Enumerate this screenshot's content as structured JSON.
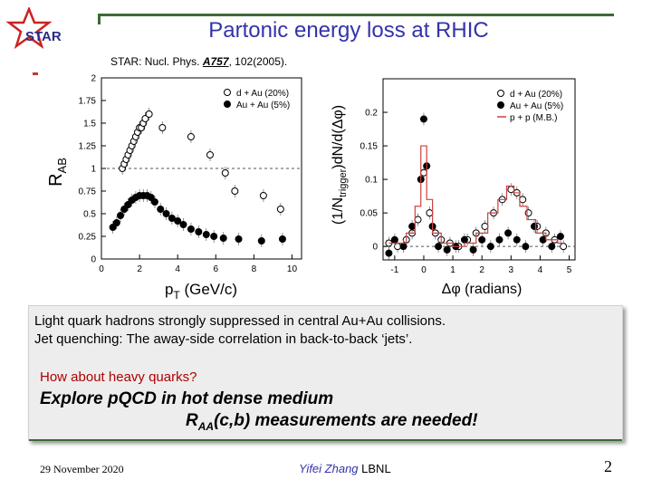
{
  "slide": {
    "title": "Partonic energy loss at RHIC",
    "citation_prefix": "STAR: Nucl. Phys. ",
    "citation_volume": "A757",
    "citation_suffix": ", 102(2005).",
    "logo_text": "STAR",
    "colors": {
      "title": "#3333aa",
      "rule": "#3a6b35",
      "logo": "#cc2222",
      "highlight": "#b00000"
    }
  },
  "body": {
    "line1": "Light quark hadrons strongly suppressed in central Au+Au collisions.",
    "line2": "Jet quenching: The away-side correlation in back-to-back ‘jets’.",
    "line3": "How about heavy quarks?",
    "line4": "Explore pQCD in hot dense medium",
    "line5_prefix": "R",
    "line5_sub": "AA",
    "line5_suffix": "(c,b) measurements are needed!"
  },
  "footer": {
    "date": "29 November 2020",
    "author": "Yifei Zhang",
    "affiliation": "LBNL",
    "page": "2"
  },
  "chart_data": [
    {
      "type": "scatter",
      "title": "",
      "xlabel": "pT (GeV/c)",
      "ylabel": "RAB",
      "xlim": [
        0,
        10.5
      ],
      "ylim": [
        0,
        2
      ],
      "x_ticks": [
        "0",
        "2",
        "4",
        "6",
        "8",
        "10"
      ],
      "y_ticks": [
        "0",
        "0.25",
        "0.5",
        "0.75",
        "1",
        "1.25",
        "1.5",
        "1.75",
        "2"
      ],
      "reference_line": 1,
      "legend": {
        "position": "top-right"
      },
      "series": [
        {
          "name": "d + Au (20%)",
          "marker": "open-circle",
          "x": [
            1.1,
            1.2,
            1.3,
            1.4,
            1.5,
            1.6,
            1.7,
            1.8,
            1.9,
            2.0,
            2.1,
            2.2,
            2.3,
            2.5,
            3.2,
            4.7,
            5.7,
            6.5,
            7.0,
            8.5,
            9.4
          ],
          "y": [
            1.0,
            1.05,
            1.1,
            1.15,
            1.2,
            1.25,
            1.3,
            1.35,
            1.4,
            1.45,
            1.45,
            1.5,
            1.55,
            1.6,
            1.45,
            1.35,
            1.15,
            0.95,
            0.75,
            0.7,
            0.55
          ]
        },
        {
          "name": "Au + Au (5%)",
          "marker": "filled-circle",
          "x": [
            0.6,
            0.8,
            1.0,
            1.2,
            1.4,
            1.6,
            1.8,
            2.0,
            2.2,
            2.4,
            2.6,
            2.8,
            3.1,
            3.4,
            3.7,
            4.0,
            4.3,
            4.7,
            5.1,
            5.5,
            5.9,
            6.4,
            7.2,
            8.4,
            9.5
          ],
          "y": [
            0.35,
            0.4,
            0.48,
            0.55,
            0.6,
            0.65,
            0.68,
            0.7,
            0.7,
            0.7,
            0.68,
            0.63,
            0.55,
            0.5,
            0.45,
            0.42,
            0.38,
            0.33,
            0.3,
            0.27,
            0.25,
            0.23,
            0.22,
            0.2,
            0.22
          ]
        }
      ]
    },
    {
      "type": "scatter",
      "title": "",
      "xlabel": "Δφ (radians)",
      "ylabel": "(1/Ntrigger)dN/d(Δφ)",
      "xlim": [
        -1.4,
        5.2
      ],
      "ylim": [
        -0.02,
        0.25
      ],
      "x_ticks": [
        "-1",
        "0",
        "1",
        "2",
        "3",
        "4",
        "5"
      ],
      "y_ticks": [
        "0",
        "0.05",
        "0.1",
        "0.15",
        "0.2"
      ],
      "reference_line": 0,
      "legend": {
        "position": "top-right"
      },
      "series": [
        {
          "name": "d + Au (20%)",
          "marker": "open-circle",
          "x": [
            -1.2,
            -0.9,
            -0.6,
            -0.4,
            -0.2,
            0.0,
            0.2,
            0.4,
            0.6,
            0.9,
            1.2,
            1.5,
            1.8,
            2.1,
            2.4,
            2.7,
            3.0,
            3.2,
            3.4,
            3.6,
            3.9,
            4.2,
            4.5,
            4.8
          ],
          "y": [
            0.005,
            0.0,
            0.01,
            0.02,
            0.04,
            0.11,
            0.05,
            0.02,
            0.01,
            0.005,
            0.0,
            0.01,
            0.02,
            0.03,
            0.05,
            0.07,
            0.085,
            0.08,
            0.07,
            0.05,
            0.03,
            0.02,
            0.01,
            0.0
          ]
        },
        {
          "name": "Au + Au (5%)",
          "marker": "filled-circle",
          "x": [
            -1.2,
            -1.0,
            -0.7,
            -0.4,
            -0.1,
            0.0,
            0.1,
            0.3,
            0.5,
            0.8,
            1.1,
            1.4,
            1.7,
            2.0,
            2.3,
            2.6,
            2.9,
            3.2,
            3.5,
            3.8,
            4.1,
            4.4,
            4.7
          ],
          "y": [
            -0.01,
            0.01,
            0.0,
            0.03,
            0.1,
            0.19,
            0.12,
            0.03,
            0.0,
            -0.005,
            0.0,
            0.01,
            -0.005,
            0.01,
            0.0,
            0.01,
            0.02,
            0.01,
            0.0,
            0.03,
            0.01,
            0.0,
            0.015
          ]
        },
        {
          "name": "p + p (M.B.)",
          "marker": "line",
          "x": [
            -1.2,
            -0.8,
            -0.4,
            -0.2,
            0.0,
            0.2,
            0.4,
            0.8,
            1.2,
            1.6,
            2.0,
            2.4,
            2.7,
            3.0,
            3.2,
            3.4,
            3.7,
            4.0,
            4.4,
            4.8
          ],
          "y": [
            0.005,
            0.005,
            0.02,
            0.06,
            0.15,
            0.07,
            0.02,
            0.005,
            0.0,
            0.005,
            0.02,
            0.05,
            0.07,
            0.09,
            0.08,
            0.06,
            0.04,
            0.02,
            0.01,
            0.005
          ]
        }
      ]
    }
  ]
}
